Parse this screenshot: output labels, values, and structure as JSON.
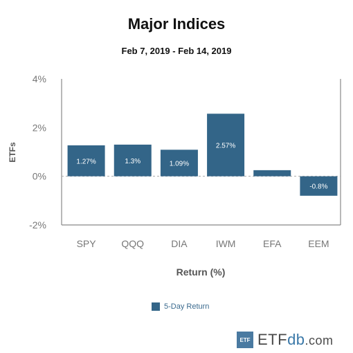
{
  "chart_data": {
    "type": "bar",
    "title": "Major Indices",
    "subtitle": "Feb 7, 2019 - Feb 14, 2019",
    "xlabel": "Return (%)",
    "ylabel": "ETFs",
    "categories": [
      "SPY",
      "QQQ",
      "DIA",
      "IWM",
      "EFA",
      "EEM"
    ],
    "series": [
      {
        "name": "5-Day Return",
        "values": [
          1.27,
          1.3,
          1.09,
          2.57,
          0.25,
          -0.8
        ],
        "data_labels": [
          "1.27%",
          "1.3%",
          "1.09%",
          "2.57%",
          "",
          "-0.8%"
        ]
      }
    ],
    "ylim": [
      -2,
      4
    ],
    "yticks": [
      -2,
      0,
      2,
      4
    ],
    "ytick_labels": [
      "-2%",
      "0%",
      "2%",
      "4%"
    ],
    "bar_color": "#336588",
    "zero_line": "dashed",
    "grid": false,
    "legend_position": "bottom"
  },
  "branding": {
    "badge": "ETF",
    "name_main": "ETF",
    "name_db": "db",
    "name_tld": ".com"
  }
}
